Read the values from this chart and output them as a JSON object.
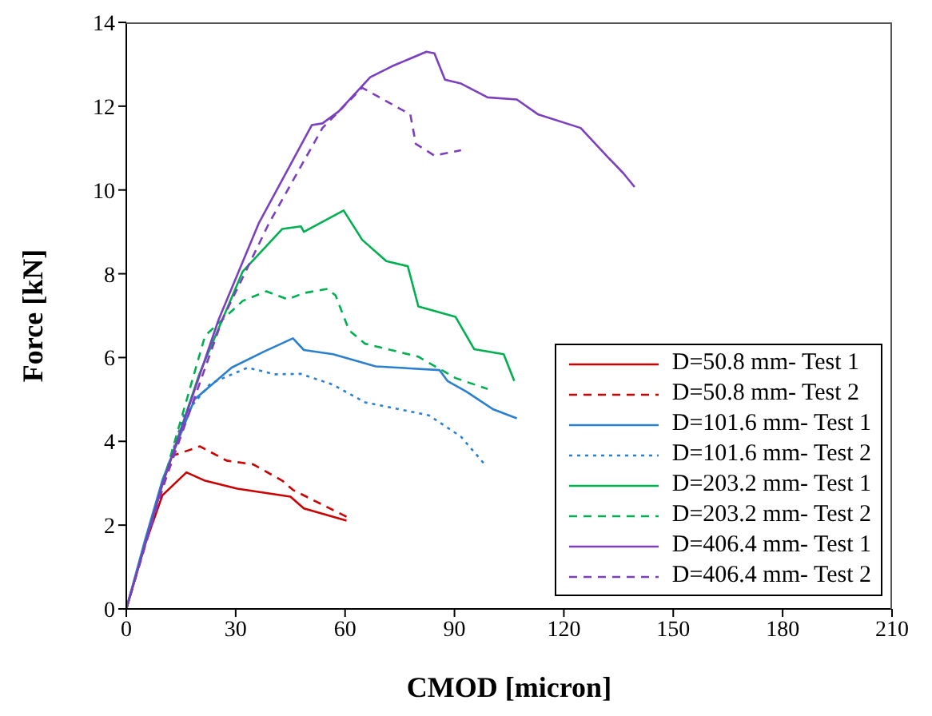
{
  "chart_data": {
    "type": "line",
    "xlabel": "CMOD [micron]",
    "ylabel": "Force [kN]",
    "xlim": [
      0,
      210
    ],
    "xticks": [
      0,
      30,
      60,
      90,
      120,
      150,
      180,
      210
    ],
    "ylim": [
      0,
      14
    ],
    "yticks": [
      0,
      2,
      4,
      6,
      8,
      10,
      12,
      14
    ],
    "legend": "bottom right",
    "marker": "none",
    "series": [
      {
        "name": "D=50.8 mm- Test 1",
        "color": "#cc0000",
        "line_style": "solid",
        "x": [
          0,
          5,
          9.9,
          16.5,
          21.6,
          30.4,
          45,
          48.7,
          60.4
        ],
        "values": [
          0,
          1.5,
          2.71,
          3.26,
          3.06,
          2.87,
          2.68,
          2.4,
          2.11
        ]
      },
      {
        "name": "D=50.8 mm- Test 2",
        "color": "#cc0000",
        "line_style": "dashed",
        "x": [
          0,
          5,
          12.8,
          20.2,
          27.5,
          34.8,
          42.8,
          45.7,
          60.4
        ],
        "values": [
          0,
          1.5,
          3.66,
          3.88,
          3.54,
          3.45,
          3.06,
          2.84,
          2.2
        ]
      },
      {
        "name": "D=101.6 mm- Test 1",
        "color": "#2a7fcf",
        "line_style": "solid",
        "x": [
          0,
          5,
          10,
          18.7,
          28.9,
          37.7,
          45.7,
          48.7,
          56.7,
          68.4,
          85.9,
          88.1,
          93.2,
          100.5,
          107.1
        ],
        "values": [
          0,
          1.6,
          3.1,
          5.0,
          5.76,
          6.14,
          6.46,
          6.18,
          6.08,
          5.79,
          5.7,
          5.44,
          5.19,
          4.77,
          4.55
        ]
      },
      {
        "name": "D=101.6 mm- Test 2",
        "color": "#2a7fcf",
        "line_style": "dotted",
        "x": [
          0,
          5,
          10,
          15.8,
          23.1,
          33.3,
          40.6,
          47.9,
          56.7,
          65.5,
          83,
          91.8,
          98.3
        ],
        "values": [
          0,
          1.5,
          3.0,
          4.62,
          5.38,
          5.76,
          5.6,
          5.61,
          5.35,
          4.93,
          4.62,
          4.11,
          3.45
        ]
      },
      {
        "name": "D=203.2 mm- Test 1",
        "color": "#00b050",
        "line_style": "solid",
        "x": [
          0,
          5,
          10,
          20,
          31.9,
          42.8,
          47.9,
          48.7,
          59.6,
          64.7,
          71.3,
          77.2,
          80.1,
          90.3,
          95.4,
          103.5,
          106.4
        ],
        "values": [
          0,
          1.5,
          3.0,
          5.6,
          8.05,
          9.07,
          9.13,
          9.0,
          9.51,
          8.81,
          8.3,
          8.18,
          7.22,
          6.97,
          6.2,
          6.08,
          5.44
        ]
      },
      {
        "name": "D=203.2 mm- Test 2",
        "color": "#00b050",
        "line_style": "dashed",
        "x": [
          0,
          5,
          10,
          21.6,
          31.9,
          38.4,
          44.3,
          48.7,
          55.2,
          57.4,
          61.1,
          65.5,
          80.1,
          90.3,
          99.1
        ],
        "values": [
          0,
          1.5,
          3.0,
          6.52,
          7.35,
          7.58,
          7.39,
          7.54,
          7.64,
          7.48,
          6.65,
          6.33,
          6.02,
          5.51,
          5.25
        ]
      },
      {
        "name": "D=406.4 mm- Test 1",
        "color": "#7b3fbf",
        "line_style": "solid",
        "x": [
          0,
          5,
          10,
          25.3,
          36.3,
          50.9,
          53.8,
          58.2,
          66.9,
          72.8,
          82.3,
          84.5,
          87.4,
          91.8,
          99.1,
          107.1,
          113,
          124.6,
          132,
          136.3,
          139.4
        ],
        "values": [
          0,
          1.5,
          3.0,
          6.9,
          9.2,
          11.55,
          11.59,
          11.87,
          12.69,
          12.95,
          13.3,
          13.26,
          12.63,
          12.54,
          12.21,
          12.16,
          11.8,
          11.48,
          10.79,
          10.4,
          10.07
        ]
      },
      {
        "name": "D=406.4 mm- Test 2",
        "color": "#7b3fbf",
        "line_style": "dashed",
        "x": [
          0,
          5,
          10,
          26.3,
          39.1,
          53.8,
          64.7,
          71.3,
          77.9,
          79.4,
          84.5,
          91.8
        ],
        "values": [
          0,
          1.45,
          2.9,
          6.9,
          9.2,
          11.48,
          12.44,
          12.12,
          11.8,
          11.1,
          10.82,
          10.95
        ]
      }
    ]
  }
}
